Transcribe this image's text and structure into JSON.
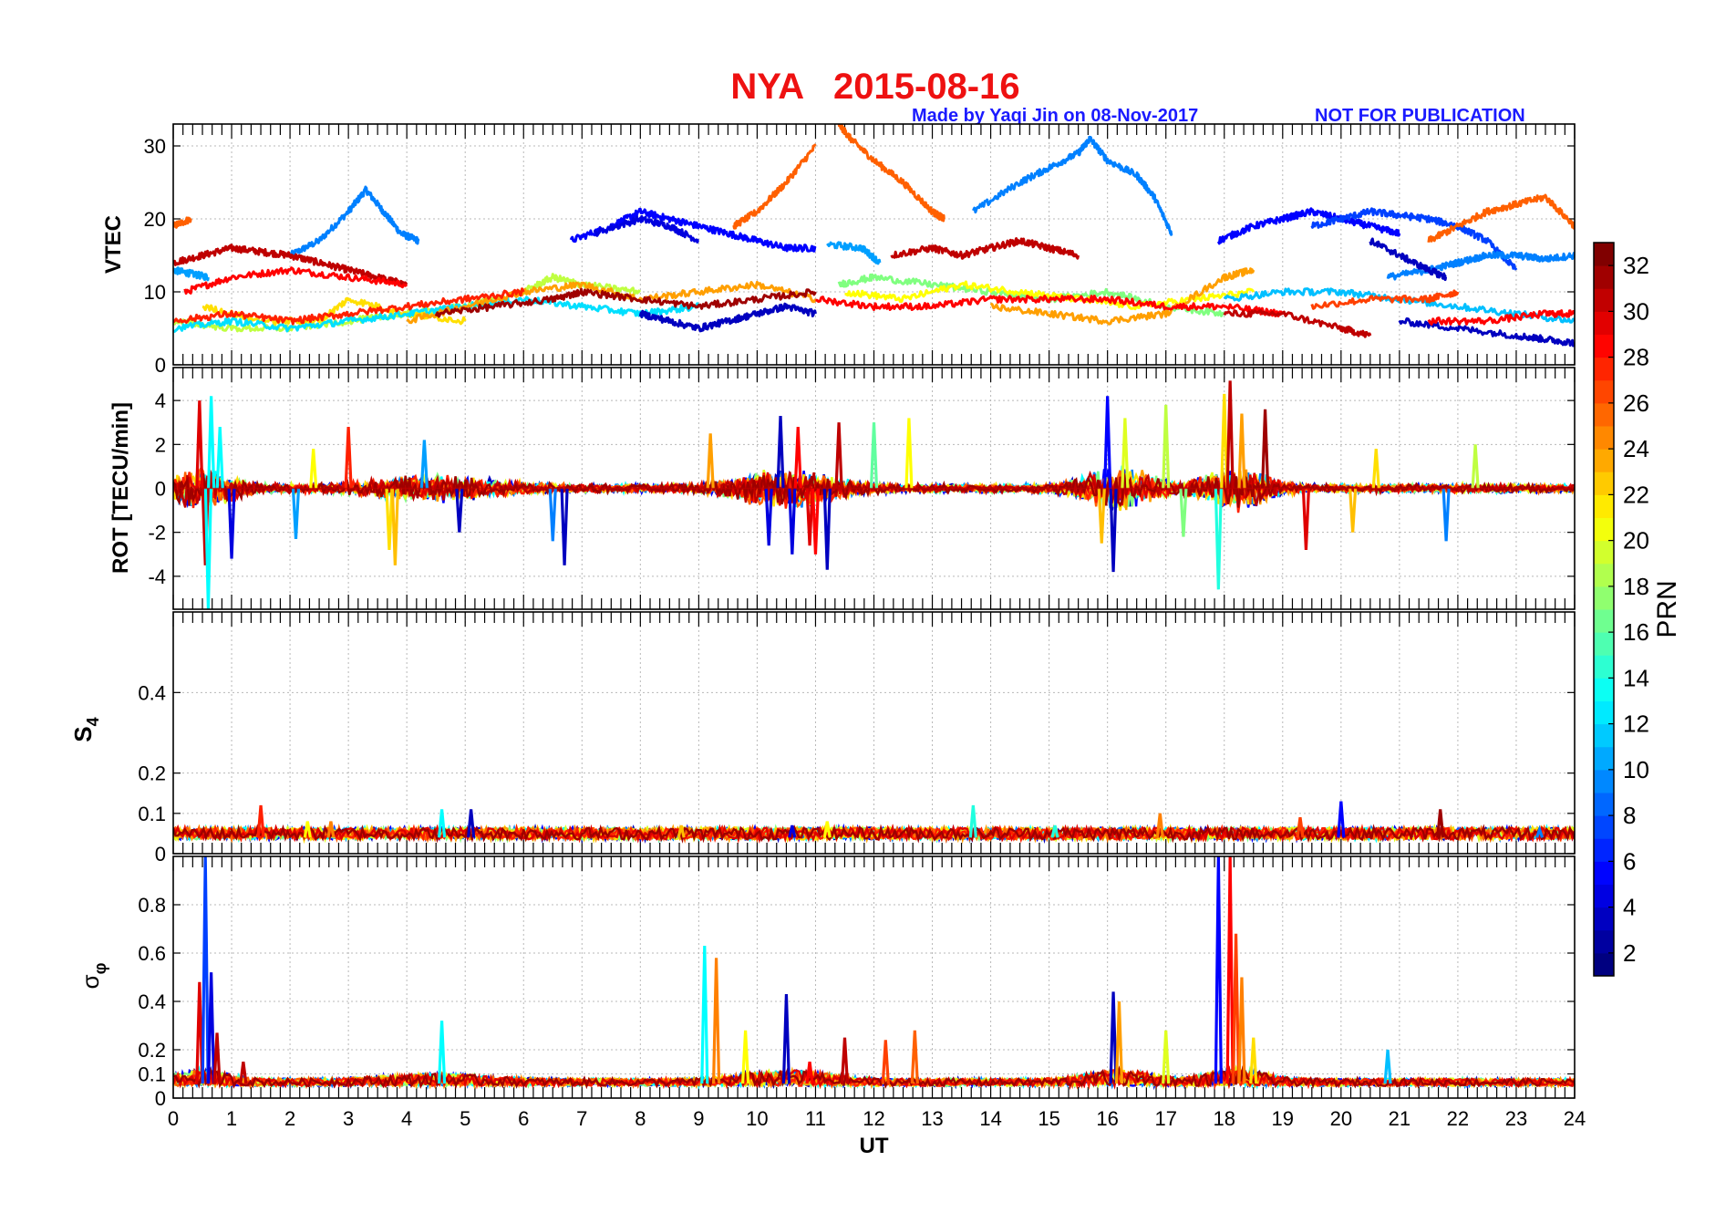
{
  "figure": {
    "title": "NYA   2015-08-16",
    "credit": "Made by Yaqi Jin on 08-Nov-2017",
    "notice": "NOT FOR PUBLICATION",
    "title_color": "#ee1111",
    "credit_color": "#1a1aff"
  },
  "chart_data": [
    {
      "type": "line",
      "panel": "VTEC",
      "ylabel": "VTEC",
      "xlabel": "",
      "xlim": [
        0,
        24
      ],
      "ylim": [
        0,
        33
      ],
      "yticks": [
        0,
        10,
        20,
        30
      ],
      "xticks": [],
      "grid": true,
      "color_key": "PRN",
      "series": [
        {
          "prn": 9,
          "x": [
            2.0,
            2.5,
            3.0,
            3.3,
            3.6,
            3.9,
            4.2
          ],
          "y": [
            15,
            17,
            21,
            24,
            21,
            18,
            17
          ]
        },
        {
          "prn": 26,
          "x": [
            0.0,
            0.3
          ],
          "y": [
            19,
            20
          ]
        },
        {
          "prn": 10,
          "x": [
            0.0,
            0.3,
            0.6
          ],
          "y": [
            13,
            12.5,
            12
          ]
        },
        {
          "prn": 31,
          "x": [
            0.0,
            0.5,
            1.0,
            1.5,
            2.0,
            2.5,
            3.0,
            3.5,
            4.0
          ],
          "y": [
            14,
            15,
            16,
            15.5,
            15,
            14,
            13,
            12,
            11
          ]
        },
        {
          "prn": 29,
          "x": [
            0.2,
            1.0,
            2.0,
            3.0,
            4.0
          ],
          "y": [
            10,
            12,
            13,
            12,
            11
          ]
        },
        {
          "prn": 5,
          "x": [
            6.8,
            7.5,
            8.0,
            8.5,
            9.0,
            9.5,
            10.0,
            10.5,
            11.0
          ],
          "y": [
            17,
            19,
            21,
            20,
            19,
            18,
            17,
            16,
            16
          ]
        },
        {
          "prn": 4,
          "x": [
            7.2,
            8.0,
            8.5,
            9.0
          ],
          "y": [
            18,
            20,
            19,
            17
          ]
        },
        {
          "prn": 26,
          "x": [
            9.6,
            10.0,
            10.5,
            11.0
          ],
          "y": [
            19,
            21,
            25,
            30
          ]
        },
        {
          "prn": 26,
          "x": [
            11.4,
            11.6,
            12.0,
            12.5,
            13.0,
            13.2
          ],
          "y": [
            33,
            31,
            28,
            25,
            21,
            20
          ]
        },
        {
          "prn": 10,
          "x": [
            11.2,
            11.8,
            12.1
          ],
          "y": [
            16.5,
            16,
            14
          ]
        },
        {
          "prn": 9,
          "x": [
            13.7,
            14.5,
            15.0,
            15.5,
            15.7,
            16.0,
            16.5,
            16.8,
            17.1
          ],
          "y": [
            21,
            25,
            27,
            29,
            31,
            28,
            26,
            23,
            18
          ]
        },
        {
          "prn": 31,
          "x": [
            12.3,
            13.0,
            13.5,
            14.0,
            14.5,
            15.0,
            15.5
          ],
          "y": [
            15,
            16,
            15,
            16,
            17,
            16,
            15
          ]
        },
        {
          "prn": 5,
          "x": [
            17.9,
            18.5,
            19.0,
            19.5,
            20.0,
            20.5,
            21.0
          ],
          "y": [
            17,
            19,
            20,
            21,
            20,
            19,
            18
          ]
        },
        {
          "prn": 7,
          "x": [
            19.5,
            20.0,
            20.5,
            21.0,
            21.5,
            22.0,
            22.5,
            23.0
          ],
          "y": [
            19,
            20,
            21,
            20.5,
            20,
            19,
            17,
            13
          ]
        },
        {
          "prn": 26,
          "x": [
            21.5,
            22.0,
            22.5,
            23.0,
            23.5,
            24.0
          ],
          "y": [
            17,
            19,
            21,
            22,
            23,
            19
          ]
        },
        {
          "prn": 9,
          "x": [
            20.8,
            21.5,
            22.0,
            22.5,
            23.0,
            23.5,
            24.0
          ],
          "y": [
            12,
            13,
            14,
            15,
            15,
            14.5,
            15
          ]
        },
        {
          "prn": 3,
          "x": [
            20.5,
            21.0,
            21.5,
            21.8
          ],
          "y": [
            17,
            15,
            13,
            12
          ]
        },
        {
          "prn": 19,
          "x": [
            0.0,
            1.0,
            2.0,
            3.0,
            4.0,
            5.0,
            6.0,
            6.5,
            7.0,
            8.0
          ],
          "y": [
            6,
            5,
            5,
            6,
            7,
            8,
            10,
            12,
            11,
            10
          ]
        },
        {
          "prn": 22,
          "x": [
            0.5,
            1.5,
            2.5,
            3.0,
            4.0,
            5.0
          ],
          "y": [
            8,
            6,
            6,
            9,
            7,
            6
          ]
        },
        {
          "prn": 12,
          "x": [
            0.0,
            1.0,
            2.0,
            3.0,
            4.0,
            5.0,
            6.0,
            7.0,
            8.0,
            9.0
          ],
          "y": [
            5,
            6,
            5,
            6,
            7,
            8,
            9,
            8,
            7,
            8
          ]
        },
        {
          "prn": 24,
          "x": [
            4.0,
            5.0,
            6.0,
            7.0,
            8.0,
            9.0,
            10.0,
            11.0
          ],
          "y": [
            6,
            8,
            10,
            11,
            9,
            10,
            11,
            9
          ]
        },
        {
          "prn": 32,
          "x": [
            4.5,
            5.5,
            6.5,
            7.0,
            8.0,
            9.0,
            10.0,
            11.0
          ],
          "y": [
            7,
            8,
            9,
            10,
            9,
            8,
            9,
            10
          ]
        },
        {
          "prn": 28,
          "x": [
            0.0,
            1.0,
            2.0,
            3.0,
            4.0,
            5.0,
            6.0
          ],
          "y": [
            6,
            7,
            6,
            7,
            8,
            9,
            10
          ]
        },
        {
          "prn": 3,
          "x": [
            8.0,
            8.5,
            9.0,
            9.5,
            10.0,
            10.5,
            11.0
          ],
          "y": [
            7,
            6,
            5,
            6,
            7,
            8,
            7
          ]
        },
        {
          "prn": 17,
          "x": [
            11.4,
            12.0,
            13.0,
            14.0,
            15.0,
            16.0,
            17.0,
            18.0
          ],
          "y": [
            11,
            12,
            11,
            10,
            9,
            10,
            8,
            7
          ]
        },
        {
          "prn": 21,
          "x": [
            11.5,
            12.5,
            13.5,
            14.5,
            15.5,
            16.5,
            17.5,
            18.5
          ],
          "y": [
            10,
            9,
            11,
            10,
            9,
            8,
            9,
            10
          ]
        },
        {
          "prn": 24,
          "x": [
            14.0,
            15.0,
            16.0,
            17.0,
            18.0,
            18.5
          ],
          "y": [
            8,
            7,
            6,
            7,
            12,
            13
          ]
        },
        {
          "prn": 29,
          "x": [
            11.0,
            12.0,
            13.0,
            14.0,
            15.0,
            16.0,
            17.0,
            18.0,
            19.0
          ],
          "y": [
            9,
            8,
            8,
            9,
            9,
            9,
            8,
            8,
            7
          ]
        },
        {
          "prn": 31,
          "x": [
            18.0,
            19.0,
            20.0,
            20.5
          ],
          "y": [
            7,
            7,
            5,
            4
          ]
        },
        {
          "prn": 3,
          "x": [
            21.0,
            22.0,
            23.0,
            23.5,
            24.0
          ],
          "y": [
            6,
            5,
            4,
            3.5,
            3
          ]
        },
        {
          "prn": 11,
          "x": [
            18.0,
            19.0,
            20.0,
            21.0,
            22.0,
            23.0,
            24.0
          ],
          "y": [
            9,
            10,
            10,
            9,
            8,
            7,
            6
          ]
        },
        {
          "prn": 27,
          "x": [
            19.5,
            20.5,
            21.5,
            22.0
          ],
          "y": [
            8,
            9,
            9,
            10
          ]
        },
        {
          "prn": 29,
          "x": [
            21.5,
            22.5,
            23.5,
            24.0
          ],
          "y": [
            6,
            6,
            7,
            7
          ]
        }
      ]
    },
    {
      "type": "line",
      "panel": "ROT",
      "ylabel": "ROT [TECU/min]",
      "xlabel": "",
      "xlim": [
        0,
        24
      ],
      "ylim": [
        -5.5,
        5.5
      ],
      "yticks": [
        -4,
        -2,
        0,
        2,
        4
      ],
      "xticks": [],
      "grid": true,
      "color_key": "PRN",
      "spikes": [
        {
          "x": 0.45,
          "y": 4.0,
          "prn": 30
        },
        {
          "x": 0.55,
          "y": -3.5,
          "prn": 31
        },
        {
          "x": 0.65,
          "y": 4.2,
          "prn": 13
        },
        {
          "x": 0.6,
          "y": -5.5,
          "prn": 13
        },
        {
          "x": 0.8,
          "y": 2.8,
          "prn": 13
        },
        {
          "x": 1.0,
          "y": -3.2,
          "prn": 4
        },
        {
          "x": 2.1,
          "y": -2.3,
          "prn": 10
        },
        {
          "x": 2.4,
          "y": 1.8,
          "prn": 21
        },
        {
          "x": 3.0,
          "y": 2.8,
          "prn": 28
        },
        {
          "x": 3.7,
          "y": -2.8,
          "prn": 22
        },
        {
          "x": 3.8,
          "y": -3.5,
          "prn": 23
        },
        {
          "x": 4.3,
          "y": 2.2,
          "prn": 10
        },
        {
          "x": 4.9,
          "y": -2.0,
          "prn": 3
        },
        {
          "x": 6.5,
          "y": -2.4,
          "prn": 9
        },
        {
          "x": 6.7,
          "y": -3.5,
          "prn": 3
        },
        {
          "x": 9.2,
          "y": 2.5,
          "prn": 24
        },
        {
          "x": 10.2,
          "y": -2.6,
          "prn": 4
        },
        {
          "x": 10.4,
          "y": 3.3,
          "prn": 3
        },
        {
          "x": 10.6,
          "y": -3.0,
          "prn": 4
        },
        {
          "x": 10.7,
          "y": 2.8,
          "prn": 29
        },
        {
          "x": 10.9,
          "y": -2.6,
          "prn": 30
        },
        {
          "x": 11.0,
          "y": -3.0,
          "prn": 29
        },
        {
          "x": 11.2,
          "y": -3.7,
          "prn": 3
        },
        {
          "x": 11.4,
          "y": 3.0,
          "prn": 31
        },
        {
          "x": 12.0,
          "y": 3.0,
          "prn": 16
        },
        {
          "x": 12.6,
          "y": 3.2,
          "prn": 21
        },
        {
          "x": 16.0,
          "y": 4.2,
          "prn": 5
        },
        {
          "x": 16.1,
          "y": -3.8,
          "prn": 3
        },
        {
          "x": 15.9,
          "y": -2.5,
          "prn": 23
        },
        {
          "x": 16.3,
          "y": 3.2,
          "prn": 20
        },
        {
          "x": 17.0,
          "y": 3.8,
          "prn": 19
        },
        {
          "x": 17.3,
          "y": -2.2,
          "prn": 17
        },
        {
          "x": 18.0,
          "y": 4.3,
          "prn": 22
        },
        {
          "x": 18.1,
          "y": 4.9,
          "prn": 31
        },
        {
          "x": 17.9,
          "y": -4.6,
          "prn": 14
        },
        {
          "x": 18.3,
          "y": 3.4,
          "prn": 24
        },
        {
          "x": 18.7,
          "y": 3.6,
          "prn": 32
        },
        {
          "x": 19.4,
          "y": -2.8,
          "prn": 30
        },
        {
          "x": 20.2,
          "y": -2.0,
          "prn": 23
        },
        {
          "x": 20.6,
          "y": 1.8,
          "prn": 22
        },
        {
          "x": 21.8,
          "y": -2.4,
          "prn": 9
        },
        {
          "x": 22.3,
          "y": 2.0,
          "prn": 19
        }
      ]
    },
    {
      "type": "line",
      "panel": "S4",
      "ylabel": "S4",
      "xlabel": "",
      "xlim": [
        0,
        24
      ],
      "ylim": [
        0,
        0.6
      ],
      "yticks": [
        0,
        0.1,
        0.2,
        0.4
      ],
      "xticks": [],
      "grid": true,
      "color_key": "PRN",
      "spikes": [
        {
          "x": 1.5,
          "y": 0.12,
          "prn": 28
        },
        {
          "x": 2.3,
          "y": 0.08,
          "prn": 21
        },
        {
          "x": 2.7,
          "y": 0.08,
          "prn": 25
        },
        {
          "x": 4.6,
          "y": 0.11,
          "prn": 13
        },
        {
          "x": 5.1,
          "y": 0.11,
          "prn": 3
        },
        {
          "x": 8.7,
          "y": 0.07,
          "prn": 23
        },
        {
          "x": 10.6,
          "y": 0.07,
          "prn": 4
        },
        {
          "x": 11.2,
          "y": 0.08,
          "prn": 21
        },
        {
          "x": 13.7,
          "y": 0.12,
          "prn": 14
        },
        {
          "x": 15.1,
          "y": 0.07,
          "prn": 14
        },
        {
          "x": 16.9,
          "y": 0.1,
          "prn": 25
        },
        {
          "x": 19.3,
          "y": 0.09,
          "prn": 27
        },
        {
          "x": 20.0,
          "y": 0.13,
          "prn": 5
        },
        {
          "x": 21.7,
          "y": 0.11,
          "prn": 32
        },
        {
          "x": 23.4,
          "y": 0.06,
          "prn": 9
        }
      ]
    },
    {
      "type": "line",
      "panel": "sigma_phi",
      "ylabel": "σφ",
      "xlabel": "UT",
      "xlim": [
        0,
        24
      ],
      "ylim": [
        0,
        1
      ],
      "yticks": [
        0,
        0.1,
        0.2,
        0.4,
        0.6,
        0.8
      ],
      "xticks": [
        0,
        1,
        2,
        3,
        4,
        5,
        6,
        7,
        8,
        9,
        10,
        11,
        12,
        13,
        14,
        15,
        16,
        17,
        18,
        19,
        20,
        21,
        22,
        23,
        24
      ],
      "grid": true,
      "color_key": "PRN",
      "spikes": [
        {
          "x": 0.45,
          "y": 0.48,
          "prn": 30
        },
        {
          "x": 0.55,
          "y": 1.0,
          "prn": 7
        },
        {
          "x": 0.65,
          "y": 0.52,
          "prn": 4
        },
        {
          "x": 0.75,
          "y": 0.27,
          "prn": 31
        },
        {
          "x": 1.2,
          "y": 0.15,
          "prn": 31
        },
        {
          "x": 4.6,
          "y": 0.32,
          "prn": 13
        },
        {
          "x": 9.1,
          "y": 0.63,
          "prn": 13
        },
        {
          "x": 9.3,
          "y": 0.58,
          "prn": 25
        },
        {
          "x": 9.8,
          "y": 0.28,
          "prn": 21
        },
        {
          "x": 10.5,
          "y": 0.43,
          "prn": 3
        },
        {
          "x": 10.9,
          "y": 0.15,
          "prn": 29
        },
        {
          "x": 11.5,
          "y": 0.25,
          "prn": 31
        },
        {
          "x": 12.2,
          "y": 0.24,
          "prn": 27
        },
        {
          "x": 12.7,
          "y": 0.28,
          "prn": 26
        },
        {
          "x": 16.1,
          "y": 0.44,
          "prn": 3
        },
        {
          "x": 16.2,
          "y": 0.4,
          "prn": 24
        },
        {
          "x": 17.0,
          "y": 0.28,
          "prn": 20
        },
        {
          "x": 17.9,
          "y": 1.0,
          "prn": 5
        },
        {
          "x": 18.1,
          "y": 1.0,
          "prn": 29
        },
        {
          "x": 18.2,
          "y": 0.68,
          "prn": 27
        },
        {
          "x": 18.3,
          "y": 0.5,
          "prn": 25
        },
        {
          "x": 18.5,
          "y": 0.25,
          "prn": 22
        },
        {
          "x": 20.8,
          "y": 0.2,
          "prn": 11
        }
      ]
    },
    {
      "type": "heatmap",
      "panel": "colorbar",
      "label": "PRN",
      "range": [
        1,
        33
      ],
      "ticks": [
        2,
        4,
        6,
        8,
        10,
        12,
        14,
        16,
        18,
        20,
        22,
        24,
        26,
        28,
        30,
        32
      ],
      "colormap": "jet"
    }
  ]
}
